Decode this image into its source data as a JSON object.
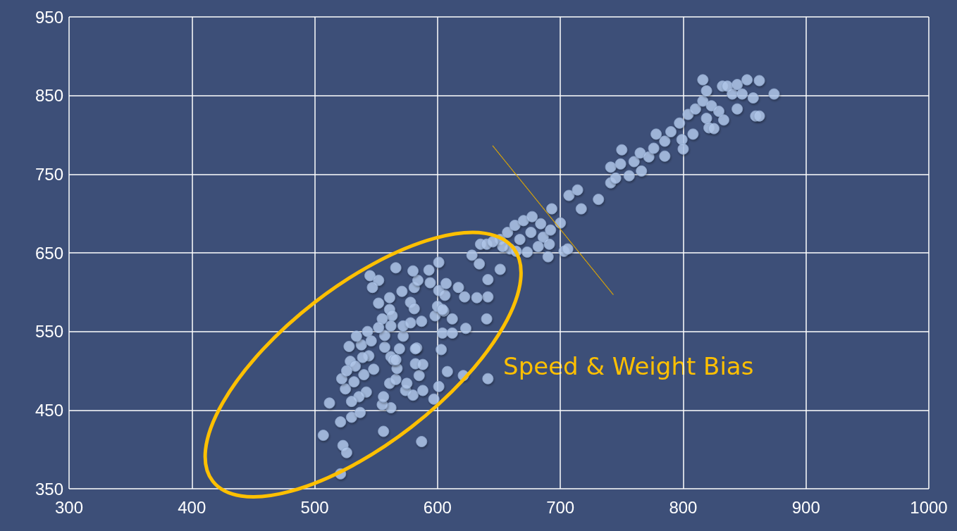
{
  "chart_data": {
    "type": "scatter",
    "marker": "circle",
    "grid": true,
    "xlim": [
      300,
      1000
    ],
    "xticks": [
      300,
      400,
      500,
      600,
      700,
      800,
      900,
      1000
    ],
    "ylim": [
      350,
      950
    ],
    "yticks": [
      350,
      450,
      550,
      650,
      750,
      850,
      950
    ],
    "annotations": [
      "Speed & Weight Bias"
    ],
    "series": [
      {
        "color": "#b4cbee",
        "x": [
          507,
          512,
          521,
          523,
          526,
          521,
          530,
          537,
          556,
          587,
          562,
          555,
          556,
          542,
          536,
          530,
          525,
          532,
          540,
          522,
          548,
          529,
          533,
          526,
          544,
          539,
          538,
          528,
          534,
          543,
          546,
          557,
          562,
          561,
          566,
          567,
          557,
          569,
          583,
          572,
          564,
          574,
          580,
          588,
          575,
          566,
          585,
          582,
          588,
          582,
          597,
          601,
          608,
          621,
          641,
          603,
          552,
          561,
          571,
          578,
          581,
          561,
          563,
          555,
          552,
          562,
          572,
          578,
          587,
          598,
          581,
          594,
          584,
          580,
          601,
          606,
          600,
          605,
          566,
          545,
          552,
          547,
          593,
          601,
          607,
          617,
          628,
          634,
          641,
          641,
          640,
          651,
          622,
          632,
          604,
          612,
          623,
          612,
          604,
          635,
          640,
          651,
          657,
          663,
          670,
          677,
          684,
          693,
          700,
          707,
          717,
          714,
          731,
          741,
          686,
          692,
          676,
          667,
          659,
          664,
          673,
          682,
          690,
          691,
          703,
          706,
          653,
          645,
          741,
          745,
          749,
          750,
          756,
          760,
          765,
          766,
          772,
          776,
          778,
          785,
          785,
          790,
          797,
          799,
          800,
          804,
          808,
          810,
          816,
          819,
          821,
          823,
          825,
          829,
          833,
          816,
          819,
          832,
          836,
          840,
          844,
          844,
          848,
          852,
          857,
          859,
          862,
          862,
          874
        ],
        "values": [
          418,
          459,
          369,
          405,
          396,
          435,
          441,
          447,
          423,
          410,
          453,
          457,
          467,
          473,
          467,
          461,
          477,
          486,
          495,
          490,
          502,
          512,
          506,
          500,
          519,
          517,
          533,
          531,
          544,
          550,
          538,
          530,
          518,
          484,
          489,
          503,
          545,
          528,
          529,
          544,
          514,
          475,
          469,
          475,
          484,
          514,
          494,
          509,
          508,
          528,
          464,
          480,
          499,
          494,
          490,
          527,
          586,
          593,
          601,
          587,
          579,
          578,
          570,
          566,
          555,
          557,
          557,
          561,
          563,
          570,
          606,
          612,
          615,
          627,
          602,
          596,
          582,
          576,
          631,
          621,
          615,
          606,
          628,
          638,
          611,
          606,
          647,
          636,
          616,
          594,
          566,
          629,
          594,
          593,
          548,
          548,
          554,
          566,
          578,
          661,
          661,
          667,
          676,
          685,
          691,
          696,
          687,
          706,
          688,
          723,
          706,
          730,
          718,
          739,
          670,
          679,
          676,
          667,
          655,
          652,
          651,
          658,
          645,
          661,
          652,
          655,
          658,
          664,
          759,
          745,
          763,
          781,
          748,
          766,
          777,
          754,
          772,
          783,
          801,
          773,
          792,
          804,
          815,
          794,
          782,
          826,
          801,
          833,
          843,
          821,
          809,
          837,
          808,
          830,
          819,
          870,
          856,
          862,
          862,
          852,
          864,
          833,
          852,
          870,
          847,
          824,
          869,
          824,
          852
        ]
      },
      {
        "type": "line",
        "color": "#e0a800",
        "line_style": "dotted",
        "marker": "none",
        "x": [
          645,
          743
        ],
        "values": [
          786,
          597
        ]
      }
    ]
  }
}
